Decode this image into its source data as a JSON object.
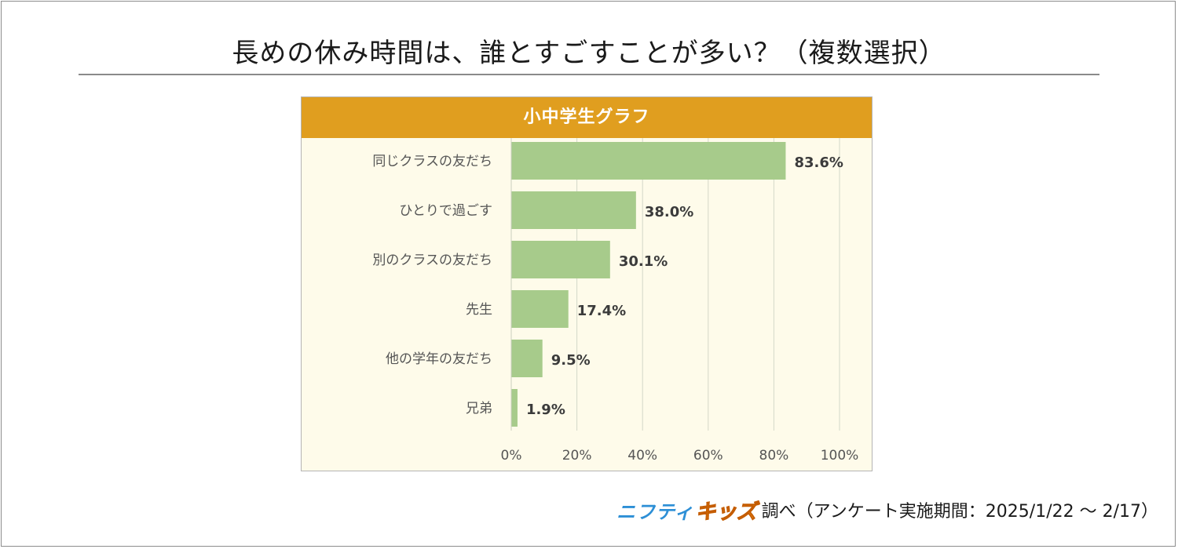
{
  "page": {
    "title": "長めの休み時間は、誰とすごすことが多い？（複数選択）"
  },
  "panel": {
    "header": "小中学生グラフ"
  },
  "chart_data": {
    "type": "bar",
    "orientation": "horizontal",
    "title": "小中学生グラフ",
    "categories": [
      "同じクラスの友だち",
      "ひとりで過ごす",
      "別のクラスの友だち",
      "先生",
      "他の学年の友だち",
      "兄弟"
    ],
    "values": [
      83.6,
      38.0,
      30.1,
      17.4,
      9.5,
      1.9
    ],
    "value_labels": [
      "83.6%",
      "38.0%",
      "30.1%",
      "17.4%",
      "9.5%",
      "1.9%"
    ],
    "xlim": [
      0,
      100
    ],
    "ticks": [
      0,
      20,
      40,
      60,
      80,
      100
    ],
    "tick_labels": [
      "0%",
      "20%",
      "40%",
      "60%",
      "80%",
      "100%"
    ],
    "grid": true,
    "colors": {
      "bar": "#a7cb8b",
      "grid": "#d3d8c9",
      "header": "#e09e1f",
      "background": "#fefbea"
    }
  },
  "footer": {
    "logo_part1": "ニフティ",
    "logo_part2": "キッズ",
    "source": "調べ（アンケート実施期間：2025/1/22 ～ 2/17）"
  }
}
